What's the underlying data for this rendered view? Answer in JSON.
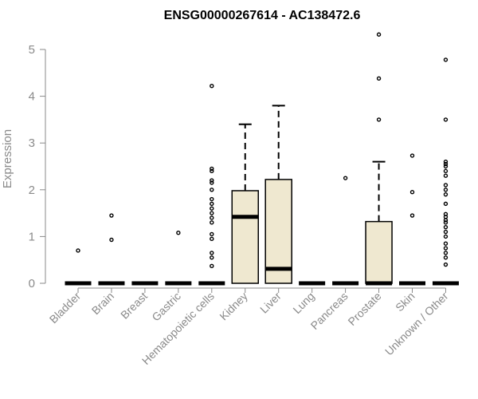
{
  "chart_data": {
    "type": "boxplot",
    "title": "ENSG00000267614 - AC138472.6",
    "ylabel": "Expression",
    "xlabel": "",
    "ylim": [
      0,
      5.3
    ],
    "yticks": [
      0,
      1,
      2,
      3,
      4,
      5
    ],
    "grid": false,
    "legend": "none",
    "colors": {
      "box_fill": "#efe8d0",
      "stroke": "#000000",
      "axis": "#8a8a8a"
    },
    "categories": [
      "Bladder",
      "Brain",
      "Breast",
      "Gastric",
      "Hematopoietic cells",
      "Kidney",
      "Liver",
      "Lung",
      "Pancreas",
      "Prostate",
      "Skin",
      "Unknown / Other"
    ],
    "boxes": [
      {
        "category": "Bladder",
        "min": 0,
        "q1": 0,
        "median": 0,
        "q3": 0,
        "max": 0,
        "outliers": [
          0.7
        ]
      },
      {
        "category": "Brain",
        "min": 0,
        "q1": 0,
        "median": 0,
        "q3": 0,
        "max": 0,
        "outliers": [
          0.93,
          1.45
        ]
      },
      {
        "category": "Breast",
        "min": 0,
        "q1": 0,
        "median": 0,
        "q3": 0,
        "max": 0,
        "outliers": []
      },
      {
        "category": "Gastric",
        "min": 0,
        "q1": 0,
        "median": 0,
        "q3": 0,
        "max": 0,
        "outliers": [
          1.08
        ]
      },
      {
        "category": "Hematopoietic cells",
        "min": 0,
        "q1": 0,
        "median": 0,
        "q3": 0,
        "max": 0,
        "outliers": [
          0.37,
          0.55,
          0.65,
          0.95,
          1.05,
          1.3,
          1.4,
          1.5,
          1.6,
          1.7,
          1.8,
          2.0,
          2.15,
          2.2,
          2.4,
          2.45,
          4.22
        ]
      },
      {
        "category": "Kidney",
        "min": 0,
        "q1": 0,
        "median": 1.42,
        "q3": 1.98,
        "max": 3.4,
        "outliers": []
      },
      {
        "category": "Liver",
        "min": 0,
        "q1": 0,
        "median": 0.31,
        "q3": 2.22,
        "max": 3.8,
        "outliers": []
      },
      {
        "category": "Lung",
        "min": 0,
        "q1": 0,
        "median": 0,
        "q3": 0,
        "max": 0,
        "outliers": []
      },
      {
        "category": "Pancreas",
        "min": 0,
        "q1": 0,
        "median": 0,
        "q3": 0,
        "max": 0,
        "outliers": [
          2.25
        ]
      },
      {
        "category": "Prostate",
        "min": 0,
        "q1": 0,
        "median": 0,
        "q3": 1.32,
        "max": 2.6,
        "outliers": [
          3.5,
          4.38,
          5.32
        ]
      },
      {
        "category": "Skin",
        "min": 0,
        "q1": 0,
        "median": 0,
        "q3": 0,
        "max": 0,
        "outliers": [
          1.45,
          1.95,
          2.73
        ]
      },
      {
        "category": "Unknown / Other",
        "min": 0,
        "q1": 0,
        "median": 0,
        "q3": 0,
        "max": 0,
        "outliers": [
          0.4,
          0.55,
          0.65,
          0.75,
          0.85,
          1.0,
          1.1,
          1.2,
          1.3,
          1.35,
          1.42,
          1.48,
          1.7,
          1.9,
          2.0,
          2.1,
          2.3,
          2.4,
          2.5,
          2.55,
          2.6,
          3.5,
          4.78
        ]
      }
    ]
  }
}
